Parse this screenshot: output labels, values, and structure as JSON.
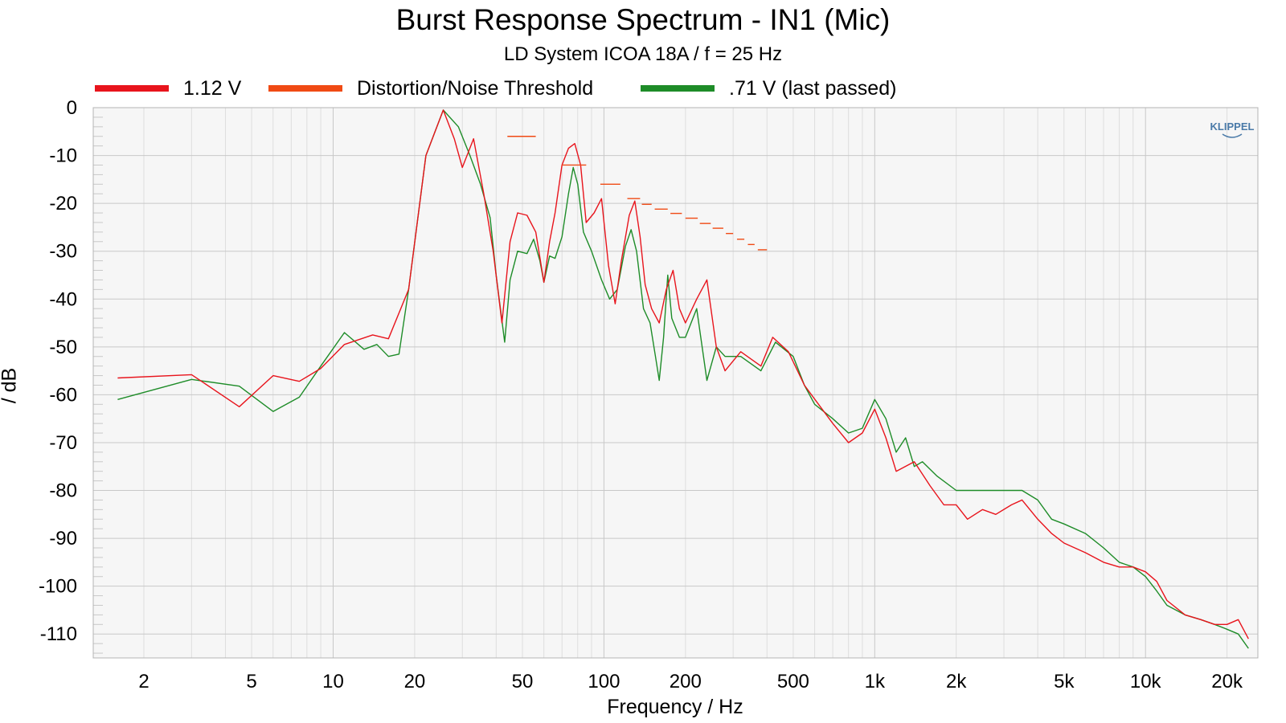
{
  "chart_data": {
    "type": "line",
    "title": "Burst Response Spectrum - IN1 (Mic)",
    "subtitle": "LD System ICOA 18A / f = 25 Hz",
    "xlabel": "Frequency / Hz",
    "ylabel": "/ dB",
    "xscale": "log",
    "xlim": [
      1.3,
      26000
    ],
    "ylim": [
      -115,
      0
    ],
    "x_ticks": [
      2,
      5,
      10,
      20,
      50,
      100,
      200,
      500,
      1000,
      2000,
      5000,
      10000,
      20000
    ],
    "x_tick_labels": [
      "2",
      "5",
      "10",
      "20",
      "50",
      "100",
      "200",
      "500",
      "1k",
      "2k",
      "5k",
      "10k",
      "20k"
    ],
    "y_ticks": [
      0,
      -10,
      -20,
      -30,
      -40,
      -50,
      -60,
      -70,
      -80,
      -90,
      -100,
      -110
    ],
    "y_tick_labels": [
      "0",
      "-10",
      "-20",
      "-30",
      "-40",
      "-50",
      "-60",
      "-70",
      "-80",
      "-90",
      "-100",
      "-110"
    ],
    "grid": true,
    "legend_position": "top",
    "watermark": "KLIPPEL",
    "colors": {
      "red": "#e8141c",
      "orange": "#f04a14",
      "green": "#1e8c28"
    },
    "series": [
      {
        "name": "1.12 V",
        "color": "#e8141c",
        "style": "line",
        "points": [
          [
            1.6,
            -56.5
          ],
          [
            3,
            -55.8
          ],
          [
            4.5,
            -62.5
          ],
          [
            6,
            -56
          ],
          [
            7.5,
            -57.2
          ],
          [
            9,
            -54.5
          ],
          [
            11,
            -49.5
          ],
          [
            14,
            -47.5
          ],
          [
            16,
            -48.3
          ],
          [
            19,
            -38
          ],
          [
            22,
            -10
          ],
          [
            25.5,
            -0.5
          ],
          [
            28,
            -6.5
          ],
          [
            30,
            -12.5
          ],
          [
            33,
            -6.5
          ],
          [
            36,
            -18
          ],
          [
            39,
            -30
          ],
          [
            42,
            -45
          ],
          [
            45,
            -28
          ],
          [
            48,
            -22
          ],
          [
            52,
            -22.5
          ],
          [
            56,
            -26
          ],
          [
            60,
            -36.5
          ],
          [
            63,
            -28
          ],
          [
            66,
            -22
          ],
          [
            70,
            -12
          ],
          [
            74,
            -8.5
          ],
          [
            78,
            -7.5
          ],
          [
            82,
            -12
          ],
          [
            86,
            -24
          ],
          [
            92,
            -22
          ],
          [
            98,
            -19
          ],
          [
            104,
            -33
          ],
          [
            110,
            -41
          ],
          [
            116,
            -32
          ],
          [
            124,
            -22.5
          ],
          [
            130,
            -19.5
          ],
          [
            136,
            -27
          ],
          [
            142,
            -37
          ],
          [
            150,
            -42
          ],
          [
            160,
            -45
          ],
          [
            170,
            -38
          ],
          [
            180,
            -34
          ],
          [
            190,
            -42
          ],
          [
            200,
            -45
          ],
          [
            220,
            -40
          ],
          [
            240,
            -36
          ],
          [
            260,
            -50
          ],
          [
            280,
            -55
          ],
          [
            320,
            -51
          ],
          [
            380,
            -54
          ],
          [
            420,
            -48
          ],
          [
            480,
            -51
          ],
          [
            550,
            -58
          ],
          [
            620,
            -62
          ],
          [
            700,
            -66
          ],
          [
            800,
            -70
          ],
          [
            900,
            -68
          ],
          [
            1000,
            -63
          ],
          [
            1100,
            -69
          ],
          [
            1200,
            -76
          ],
          [
            1400,
            -74
          ],
          [
            1600,
            -79
          ],
          [
            1800,
            -83
          ],
          [
            2000,
            -83
          ],
          [
            2200,
            -86
          ],
          [
            2500,
            -84
          ],
          [
            2800,
            -85
          ],
          [
            3200,
            -83
          ],
          [
            3500,
            -82
          ],
          [
            4000,
            -86
          ],
          [
            4500,
            -89
          ],
          [
            5000,
            -91
          ],
          [
            6000,
            -93
          ],
          [
            7000,
            -95
          ],
          [
            8000,
            -96
          ],
          [
            9000,
            -96
          ],
          [
            10000,
            -97
          ],
          [
            11000,
            -99
          ],
          [
            12000,
            -103
          ],
          [
            14000,
            -106
          ],
          [
            16000,
            -107
          ],
          [
            18000,
            -108
          ],
          [
            20000,
            -108
          ],
          [
            22000,
            -107
          ],
          [
            24000,
            -111
          ]
        ]
      },
      {
        "name": "Distortion/Noise Threshold",
        "color": "#f04a14",
        "style": "segments",
        "segments": [
          [
            44,
            56,
            -6
          ],
          [
            70,
            86,
            -12
          ],
          [
            97,
            115,
            -16
          ],
          [
            122,
            136,
            -19
          ],
          [
            138,
            150,
            -20.2
          ],
          [
            154,
            172,
            -21.2
          ],
          [
            176,
            194,
            -22.1
          ],
          [
            200,
            222,
            -23.1
          ],
          [
            226,
            248,
            -24.2
          ],
          [
            252,
            276,
            -25.2
          ],
          [
            282,
            300,
            -26.3
          ],
          [
            310,
            330,
            -27.5
          ],
          [
            340,
            360,
            -28.6
          ],
          [
            370,
            400,
            -29.7
          ]
        ]
      },
      {
        "name": ".71 V (last passed)",
        "color": "#1e8c28",
        "style": "line",
        "points": [
          [
            1.6,
            -61
          ],
          [
            3,
            -56.8
          ],
          [
            4.5,
            -58.2
          ],
          [
            6,
            -63.5
          ],
          [
            7.5,
            -60.5
          ],
          [
            9,
            -54
          ],
          [
            11,
            -47
          ],
          [
            13,
            -50.5
          ],
          [
            14.5,
            -49.5
          ],
          [
            16,
            -52
          ],
          [
            17.5,
            -51.5
          ],
          [
            19,
            -38
          ],
          [
            22,
            -10
          ],
          [
            25.5,
            -0.5
          ],
          [
            29,
            -4
          ],
          [
            32,
            -10
          ],
          [
            35,
            -16
          ],
          [
            38,
            -23
          ],
          [
            40,
            -35
          ],
          [
            43,
            -49
          ],
          [
            45,
            -36
          ],
          [
            48,
            -30
          ],
          [
            52,
            -30.5
          ],
          [
            55,
            -27.5
          ],
          [
            58,
            -32
          ],
          [
            60,
            -36.5
          ],
          [
            63,
            -31
          ],
          [
            66,
            -31.5
          ],
          [
            70,
            -27
          ],
          [
            74,
            -18
          ],
          [
            77,
            -12.5
          ],
          [
            80,
            -16
          ],
          [
            84,
            -26
          ],
          [
            90,
            -30
          ],
          [
            98,
            -36
          ],
          [
            105,
            -40
          ],
          [
            112,
            -38
          ],
          [
            120,
            -29
          ],
          [
            126,
            -25.5
          ],
          [
            132,
            -30
          ],
          [
            140,
            -42
          ],
          [
            148,
            -45
          ],
          [
            155,
            -52
          ],
          [
            160,
            -57
          ],
          [
            166,
            -48
          ],
          [
            172,
            -35
          ],
          [
            178,
            -44
          ],
          [
            190,
            -48
          ],
          [
            200,
            -48
          ],
          [
            220,
            -42
          ],
          [
            240,
            -57
          ],
          [
            260,
            -50
          ],
          [
            280,
            -52
          ],
          [
            320,
            -52
          ],
          [
            380,
            -55
          ],
          [
            430,
            -49
          ],
          [
            500,
            -52
          ],
          [
            550,
            -58
          ],
          [
            600,
            -62
          ],
          [
            700,
            -65
          ],
          [
            800,
            -68
          ],
          [
            900,
            -67
          ],
          [
            1000,
            -61
          ],
          [
            1100,
            -65
          ],
          [
            1200,
            -72
          ],
          [
            1300,
            -69
          ],
          [
            1400,
            -75
          ],
          [
            1500,
            -74
          ],
          [
            1700,
            -77
          ],
          [
            2000,
            -80
          ],
          [
            2500,
            -80
          ],
          [
            3000,
            -80
          ],
          [
            3500,
            -80
          ],
          [
            4000,
            -82
          ],
          [
            4500,
            -86
          ],
          [
            5000,
            -87
          ],
          [
            6000,
            -89
          ],
          [
            7000,
            -92
          ],
          [
            8000,
            -95
          ],
          [
            9000,
            -96
          ],
          [
            10000,
            -98
          ],
          [
            11000,
            -101
          ],
          [
            12000,
            -104
          ],
          [
            14000,
            -106
          ],
          [
            16000,
            -107
          ],
          [
            18000,
            -108
          ],
          [
            20000,
            -109
          ],
          [
            22000,
            -110
          ],
          [
            24000,
            -113
          ]
        ]
      }
    ]
  }
}
